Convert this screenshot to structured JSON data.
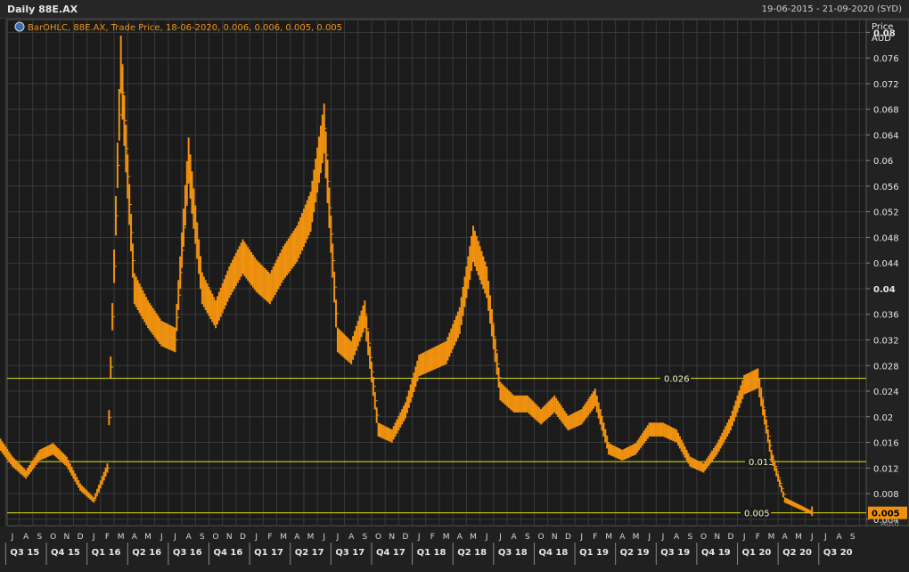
{
  "header": {
    "title": "Daily 88E.AX",
    "date_range": "19-06-2015 - 21-09-2020 (SYD)"
  },
  "legend": {
    "text": "BarOHLC, 88E.AX, Trade Price, 18-06-2020, 0.006, 0.006, 0.005, 0.005"
  },
  "axis_header": {
    "line1": "Price",
    "line2": "AUD"
  },
  "auto_label": "Auto",
  "colors": {
    "price": "#f0920f",
    "hline": "#e6e615",
    "grid": "#3a3a3a",
    "last_box": "#f0920f"
  },
  "chart_data": {
    "type": "line",
    "title": "",
    "ylabel": "Price AUD",
    "ylim": [
      0.003,
      0.082
    ],
    "y_ticks": [
      "0.08",
      "0.076",
      "0.072",
      "0.068",
      "0.064",
      "0.06",
      "0.056",
      "0.052",
      "0.048",
      "0.044",
      "0.04",
      "0.036",
      "0.032",
      "0.028",
      "0.024",
      "0.02",
      "0.016",
      "0.012",
      "0.008",
      "0.004"
    ],
    "y_ticks_bold": [
      "0.08",
      "0.04"
    ],
    "month_labels": [
      "J",
      "A",
      "S",
      "O",
      "N",
      "D",
      "J",
      "F",
      "M",
      "A",
      "M",
      "J",
      "J",
      "A",
      "S",
      "O",
      "N",
      "D",
      "J",
      "F",
      "M",
      "A",
      "M",
      "J",
      "J",
      "A",
      "S",
      "O",
      "N",
      "D",
      "J",
      "F",
      "M",
      "A",
      "M",
      "J",
      "J",
      "A",
      "S",
      "O",
      "N",
      "D",
      "J",
      "F",
      "M",
      "A",
      "M",
      "J",
      "J",
      "A",
      "S",
      "O",
      "N",
      "D",
      "J",
      "F",
      "M",
      "A",
      "M",
      "J",
      "J",
      "A",
      "S"
    ],
    "quarter_labels": [
      "Q3 15",
      "Q4 15",
      "Q1 16",
      "Q2 16",
      "Q3 16",
      "Q4 16",
      "Q1 17",
      "Q2 17",
      "Q3 17",
      "Q4 17",
      "Q1 18",
      "Q2 18",
      "Q3 18",
      "Q4 18",
      "Q1 19",
      "Q2 19",
      "Q3 19",
      "Q4 19",
      "Q1 20",
      "Q2 20",
      "Q3 20"
    ],
    "series": [
      {
        "x": [
          "2015-06",
          "2015-07",
          "2015-08",
          "2015-09",
          "2015-10",
          "2015-11",
          "2015-12",
          "2016-01",
          "2016-02",
          "2016-03",
          "2016-04",
          "2016-05",
          "2016-06",
          "2016-07",
          "2016-08",
          "2016-09",
          "2016-10",
          "2016-11",
          "2016-12",
          "2017-01",
          "2017-02",
          "2017-03",
          "2017-04",
          "2017-05",
          "2017-06",
          "2017-07",
          "2017-08",
          "2017-09",
          "2017-10",
          "2017-11",
          "2017-12",
          "2018-01",
          "2018-02",
          "2018-03",
          "2018-04",
          "2018-05",
          "2018-06",
          "2018-07",
          "2018-08",
          "2018-09",
          "2018-10",
          "2018-11",
          "2018-12",
          "2019-01",
          "2019-02",
          "2019-03",
          "2019-04",
          "2019-05",
          "2019-06",
          "2019-07",
          "2019-08",
          "2019-09",
          "2019-10",
          "2019-11",
          "2019-12",
          "2020-01",
          "2020-02",
          "2020-03",
          "2020-04",
          "2020-05",
          "2020-06"
        ],
        "values": [
          0.016,
          0.013,
          0.011,
          0.014,
          0.015,
          0.013,
          0.009,
          0.007,
          0.012,
          0.075,
          0.04,
          0.036,
          0.033,
          0.032,
          0.06,
          0.04,
          0.036,
          0.041,
          0.045,
          0.042,
          0.04,
          0.044,
          0.047,
          0.052,
          0.065,
          0.032,
          0.03,
          0.036,
          0.018,
          0.017,
          0.021,
          0.028,
          0.029,
          0.03,
          0.035,
          0.047,
          0.041,
          0.024,
          0.022,
          0.022,
          0.02,
          0.022,
          0.019,
          0.02,
          0.023,
          0.015,
          0.014,
          0.015,
          0.018,
          0.018,
          0.017,
          0.013,
          0.012,
          0.015,
          0.019,
          0.025,
          0.026,
          0.014,
          0.007,
          0.006,
          0.005
        ]
      }
    ],
    "hlines": [
      {
        "value": 0.026,
        "label": "0.026"
      },
      {
        "value": 0.013,
        "label": "0.013"
      },
      {
        "value": 0.005,
        "label": "0.005"
      }
    ],
    "last_value": "0.005",
    "grid": true
  }
}
